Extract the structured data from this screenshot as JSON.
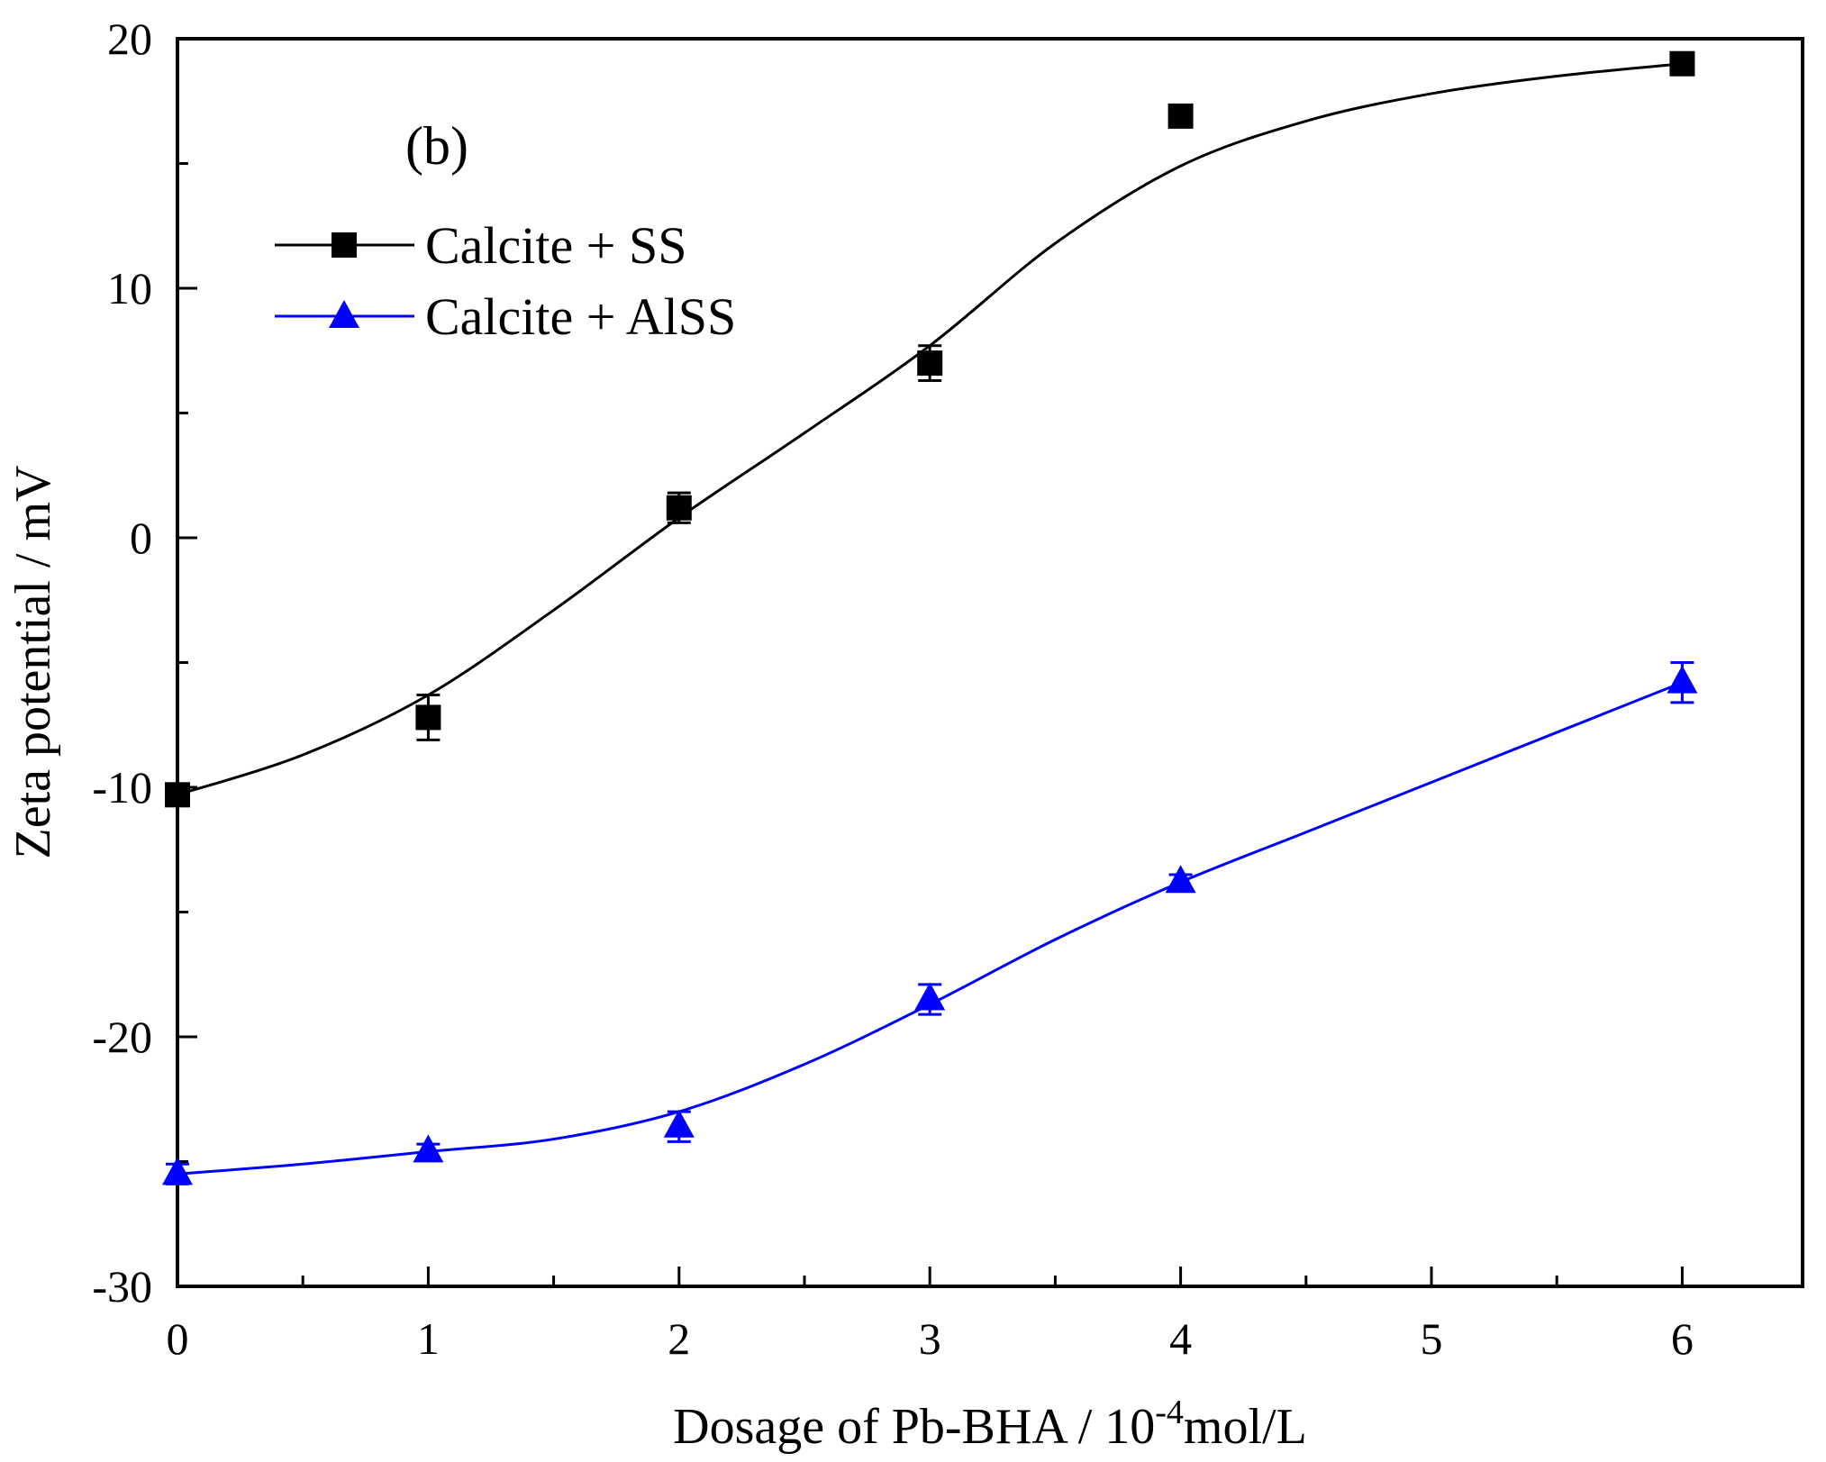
{
  "chart_data": {
    "type": "line",
    "panel_label": "(b)",
    "xlabel": "Dosage of Pb-BHA / 10",
    "xlabel_sup": "-4",
    "xlabel_tail": "mol/L",
    "ylabel": "Zeta potential / mV",
    "xlim": [
      0,
      6.5
    ],
    "ylim": [
      -30,
      20
    ],
    "xticks": [
      0,
      1,
      2,
      3,
      4,
      5,
      6
    ],
    "xtick_labels": [
      "0",
      "1",
      "2",
      "3",
      "4",
      "5",
      "6"
    ],
    "yticks": [
      -30,
      -20,
      -10,
      0,
      10,
      20
    ],
    "ytick_labels": [
      "-30",
      "-20",
      "-10",
      "0",
      "10",
      "20"
    ],
    "legend_position": "top-left",
    "series": [
      {
        "name": "Calcite + SS",
        "color": "#000000",
        "marker": "square",
        "x": [
          0,
          1,
          2,
          3,
          4,
          6
        ],
        "y": [
          -10.3,
          -7.2,
          1.2,
          7.0,
          16.9,
          19.0
        ],
        "err": [
          0.3,
          0.9,
          0.6,
          0.7,
          0.2,
          0.3
        ],
        "curve_x": [
          0,
          0.5,
          1,
          1.5,
          2,
          2.5,
          3,
          3.5,
          4,
          4.5,
          5,
          5.5,
          6
        ],
        "curve_y": [
          -10.3,
          -8.7,
          -6.3,
          -2.9,
          0.8,
          4.2,
          7.7,
          11.8,
          14.9,
          16.7,
          17.8,
          18.5,
          19.0
        ]
      },
      {
        "name": "Calcite + AlSS",
        "color": "#0000ff",
        "marker": "triangle",
        "x": [
          0,
          1,
          2,
          3,
          4,
          6
        ],
        "y": [
          -25.5,
          -24.6,
          -23.6,
          -18.5,
          -13.8,
          -5.8
        ],
        "err": [
          0.4,
          0.3,
          0.6,
          0.6,
          0.3,
          0.8
        ],
        "curve_x": [
          0,
          0.5,
          1,
          1.5,
          2,
          2.5,
          3,
          3.5,
          4,
          4.5,
          5,
          5.5,
          6
        ],
        "curve_y": [
          -25.5,
          -25.1,
          -24.6,
          -24.1,
          -23.0,
          -21.1,
          -18.7,
          -16.1,
          -13.8,
          -11.8,
          -9.8,
          -7.8,
          -5.8
        ]
      }
    ]
  }
}
